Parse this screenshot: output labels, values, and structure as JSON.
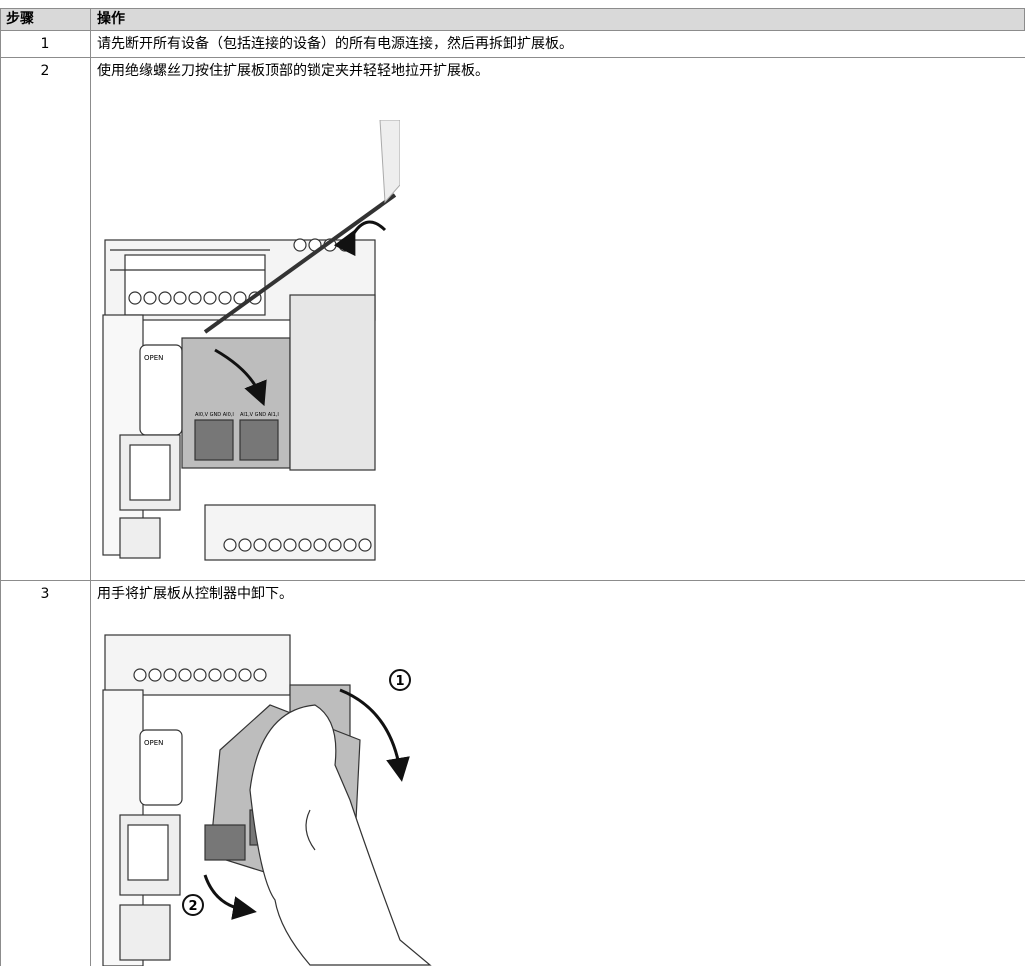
{
  "table": {
    "header": [
      "步骤",
      "操作"
    ],
    "rows": [
      {
        "step": "1",
        "text": "请先断开所有设备（包括连接的设备）的所有电源连接，然后再拆卸扩展板。"
      },
      {
        "step": "2",
        "text": "使用绝缘螺丝刀按住扩展板顶部的锁定夹并轻轻地拉开扩展板。",
        "figure": {
          "labels": [
            "OPEN",
            "AI0,V GND AI0,I",
            "AI1,V GND AI1,I"
          ]
        }
      },
      {
        "step": "3",
        "text": "用手将扩展板从控制器中卸下。",
        "figure": {
          "labels": [
            "OPEN",
            "1",
            "2"
          ]
        }
      }
    ]
  }
}
